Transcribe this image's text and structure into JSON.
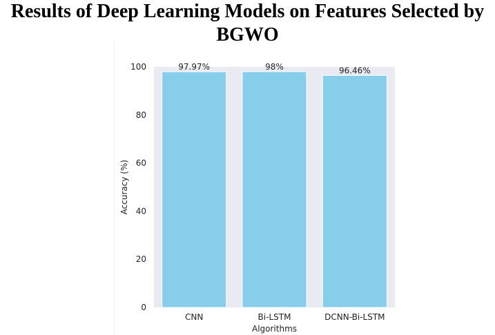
{
  "chart_data": {
    "type": "bar",
    "title": "Results of Deep Learning Models on Features Selected by BGWO",
    "xlabel": "Algorithms",
    "ylabel": "Accuracy (%)",
    "categories": [
      "CNN",
      "Bi-LSTM",
      "DCNN-Bi-LSTM"
    ],
    "values": [
      97.97,
      98,
      96.46
    ],
    "data_labels": [
      "97.97%",
      "98%",
      "96.46%"
    ],
    "yticks": [
      0,
      20,
      40,
      60,
      80,
      100
    ],
    "ylim": [
      0,
      100
    ],
    "grid": false,
    "bar_color": "#87CEEB",
    "plot_background": "#EAEAF2"
  }
}
